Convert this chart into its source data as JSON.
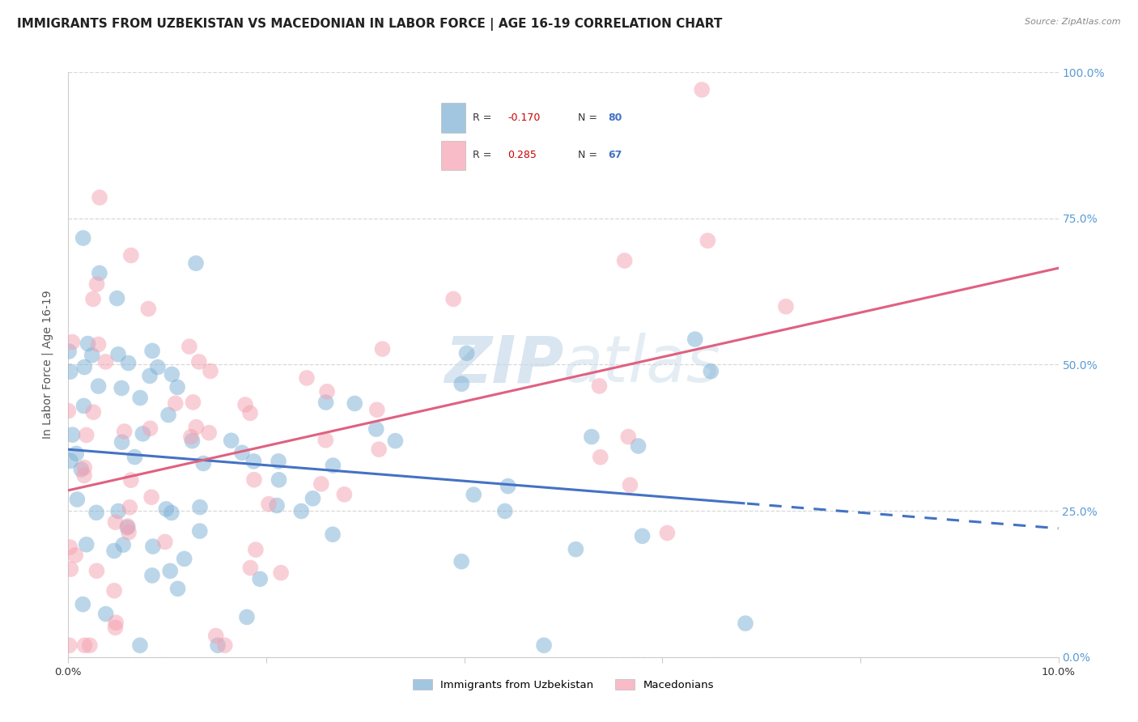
{
  "title": "IMMIGRANTS FROM UZBEKISTAN VS MACEDONIAN IN LABOR FORCE | AGE 16-19 CORRELATION CHART",
  "source_text": "Source: ZipAtlas.com",
  "ylabel": "In Labor Force | Age 16-19",
  "xlim": [
    0.0,
    0.1
  ],
  "ylim": [
    0.0,
    1.0
  ],
  "x_ticks": [
    0.0,
    0.02,
    0.04,
    0.06,
    0.08,
    0.1
  ],
  "y_ticks": [
    0.0,
    0.25,
    0.5,
    0.75,
    1.0
  ],
  "y_tick_labels_right": [
    "0.0%",
    "25.0%",
    "50.0%",
    "75.0%",
    "100.0%"
  ],
  "uzbekistan_color": "#7bafd4",
  "macedonian_color": "#f4a0b0",
  "uzbekistan_line_color": "#4472c4",
  "macedonian_line_color": "#e06080",
  "uzbekistan_R": -0.17,
  "uzbekistan_N": 80,
  "macedonian_R": 0.285,
  "macedonian_N": 67,
  "watermark_zip": "ZIP",
  "watermark_atlas": "atlas",
  "background_color": "#ffffff",
  "grid_color": "#d8d8d8",
  "title_fontsize": 11,
  "axis_label_fontsize": 10,
  "tick_fontsize": 9.5,
  "right_tick_color": "#5b9bd5",
  "legend_box_color": "#aaaaaa",
  "blue_intercept": 0.355,
  "blue_slope": -1.35,
  "pink_intercept": 0.285,
  "pink_slope": 3.8
}
